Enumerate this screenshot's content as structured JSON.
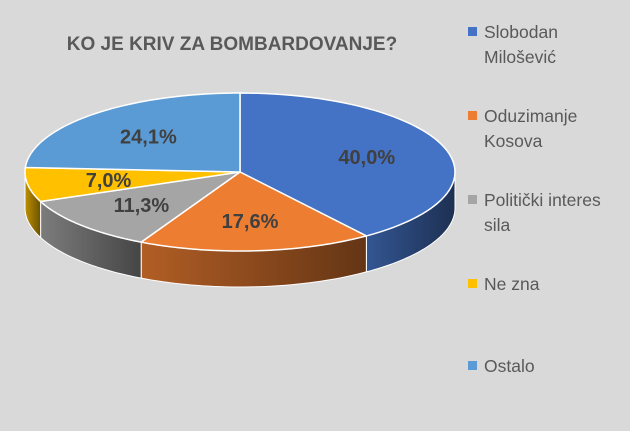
{
  "chart_data": {
    "type": "pie",
    "title": "KO JE KRIV ZA BOMBARDOVANJE?",
    "categories": [
      "Slobodan Milošević",
      "Oduzimanje Kosova",
      "Politički interes sila",
      "Ne zna",
      "Ostalo"
    ],
    "values": [
      40.0,
      17.6,
      11.3,
      7.0,
      24.1
    ],
    "value_labels": [
      "40,0%",
      "17,6%",
      "11,3%",
      "7,0%",
      "24,1%"
    ],
    "colors": [
      "#4472c4",
      "#ed7d31",
      "#a5a5a5",
      "#ffc000",
      "#5b9bd5"
    ],
    "style": "3d",
    "legend_position": "right"
  }
}
